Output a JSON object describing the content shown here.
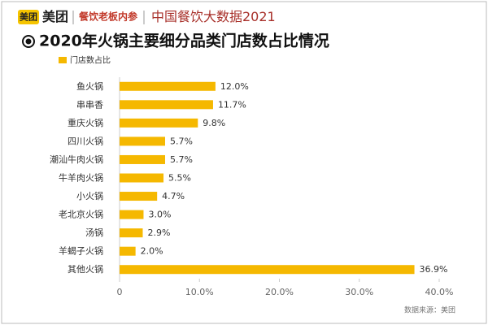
{
  "header": {
    "logo": "美团",
    "brand": "美团",
    "partner": "餐饮老板内参",
    "report": "中国餐饮大数据2021"
  },
  "chart_data": {
    "type": "hbar",
    "title": "2020年火锅主要细分品类门店数占比情况",
    "legend": "门店数占比",
    "color": "#f5b800",
    "categories": [
      "鱼火锅",
      "串串香",
      "重庆火锅",
      "四川火锅",
      "潮汕牛肉火锅",
      "牛羊肉火锅",
      "小火锅",
      "老北京火锅",
      "汤锅",
      "羊蝎子火锅",
      "其他火锅"
    ],
    "values": [
      12.0,
      11.7,
      9.8,
      5.7,
      5.7,
      5.5,
      4.7,
      3.0,
      2.9,
      2.0,
      36.9
    ],
    "value_labels": [
      "12.0%",
      "11.7%",
      "9.8%",
      "5.7%",
      "5.7%",
      "5.5%",
      "4.7%",
      "3.0%",
      "2.9%",
      "2.0%",
      "36.9%"
    ],
    "xlim": [
      0,
      40
    ],
    "xticks": [
      0,
      {
        "value": 10,
        "label": "10.0%"
      },
      {
        "value": 20,
        "label": "20.0%"
      },
      {
        "value": 30,
        "label": "30.0%"
      },
      {
        "value": 40,
        "label": "40.0%"
      }
    ],
    "grid": false,
    "source": "数据来源：美团"
  }
}
